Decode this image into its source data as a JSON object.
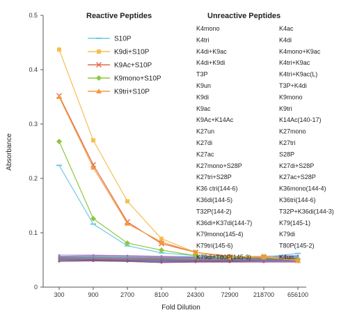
{
  "chart_data": {
    "type": "line",
    "title": "",
    "xlabel": "Fold Dilution",
    "ylabel": "Absorbance",
    "x": [
      "300",
      "900",
      "2700",
      "8100",
      "24300",
      "72900",
      "218700",
      "656100"
    ],
    "ylim": [
      0.0,
      0.5
    ],
    "yticks": [
      "0",
      "0.1",
      "0.2",
      "0.3",
      "0.4",
      "0.5"
    ],
    "grid": false,
    "legend_title": "Reactive Peptides",
    "legend_position": "top-left",
    "series": [
      {
        "name": "S10P",
        "color": "#6ecbe0",
        "marker": "dash",
        "values": [
          0.224,
          0.116,
          0.076,
          0.063,
          0.058,
          0.056,
          0.055,
          0.062
        ]
      },
      {
        "name": "K9di+S10P",
        "color": "#f7be4f",
        "marker": "square",
        "values": [
          0.437,
          0.27,
          0.158,
          0.089,
          0.064,
          0.056,
          0.057,
          0.049
        ]
      },
      {
        "name": "K9Ac+S10P",
        "color": "#e06a4a",
        "marker": "x",
        "values": [
          0.352,
          0.225,
          0.12,
          0.08,
          0.064,
          0.055,
          0.055,
          0.049
        ]
      },
      {
        "name": "K9mono+S10P",
        "color": "#8ec63f",
        "marker": "diamond",
        "values": [
          0.268,
          0.126,
          0.081,
          0.068,
          0.058,
          0.055,
          0.055,
          0.05
        ]
      },
      {
        "name": "K9tri+S10P",
        "color": "#f59a3a",
        "marker": "triangle",
        "values": [
          0.35,
          0.22,
          0.117,
          0.083,
          0.064,
          0.057,
          0.055,
          0.049
        ]
      }
    ],
    "background_series_values": [
      [
        0.059,
        0.059,
        0.058,
        0.057,
        0.056,
        0.056,
        0.057,
        0.058
      ],
      [
        0.057,
        0.058,
        0.057,
        0.056,
        0.055,
        0.055,
        0.056,
        0.057
      ],
      [
        0.056,
        0.057,
        0.056,
        0.055,
        0.055,
        0.055,
        0.055,
        0.056
      ],
      [
        0.055,
        0.056,
        0.055,
        0.055,
        0.054,
        0.054,
        0.055,
        0.055
      ],
      [
        0.055,
        0.055,
        0.054,
        0.054,
        0.054,
        0.053,
        0.054,
        0.054
      ],
      [
        0.054,
        0.055,
        0.054,
        0.053,
        0.053,
        0.053,
        0.053,
        0.054
      ],
      [
        0.054,
        0.054,
        0.053,
        0.053,
        0.052,
        0.052,
        0.053,
        0.053
      ],
      [
        0.053,
        0.054,
        0.053,
        0.052,
        0.052,
        0.052,
        0.052,
        0.052
      ],
      [
        0.053,
        0.053,
        0.052,
        0.052,
        0.051,
        0.051,
        0.052,
        0.052
      ],
      [
        0.052,
        0.053,
        0.052,
        0.051,
        0.051,
        0.051,
        0.051,
        0.051
      ],
      [
        0.052,
        0.052,
        0.051,
        0.051,
        0.05,
        0.05,
        0.051,
        0.051
      ],
      [
        0.051,
        0.052,
        0.051,
        0.05,
        0.05,
        0.05,
        0.05,
        0.05
      ],
      [
        0.051,
        0.051,
        0.05,
        0.05,
        0.049,
        0.049,
        0.05,
        0.05
      ],
      [
        0.05,
        0.051,
        0.05,
        0.049,
        0.049,
        0.049,
        0.049,
        0.049
      ],
      [
        0.05,
        0.05,
        0.049,
        0.049,
        0.048,
        0.048,
        0.049,
        0.049
      ],
      [
        0.049,
        0.05,
        0.049,
        0.048,
        0.048,
        0.048,
        0.048,
        0.048
      ],
      [
        0.049,
        0.049,
        0.048,
        0.047,
        0.047,
        0.047,
        0.048,
        0.048
      ],
      [
        0.048,
        0.049,
        0.048,
        0.046,
        0.047,
        0.047,
        0.047,
        0.047
      ],
      [
        0.048,
        0.048,
        0.047,
        0.045,
        0.046,
        0.046,
        0.047,
        0.047
      ],
      [
        0.047,
        0.048,
        0.047,
        0.045,
        0.046,
        0.046,
        0.046,
        0.046
      ]
    ],
    "background_colors": [
      "#7a7ad8",
      "#d84fa0",
      "#4fa0d8",
      "#a0a0a0",
      "#8a5fc8",
      "#50b0a0",
      "#c86060",
      "#6080c0",
      "#909030",
      "#b070d0",
      "#3c8ca8",
      "#d08040",
      "#7070a0",
      "#a050a0",
      "#5090d0",
      "#606060",
      "#c050c0",
      "#4060a0",
      "#80a0c0",
      "#b04070"
    ],
    "unreactive_title": "Unreactive Peptides",
    "unreactive_col1": [
      "K4mono",
      "K4tri",
      "K4di+K9ac",
      "K4di+K9di",
      "T3P",
      "K9un",
      "K9di",
      "K9ac",
      "K9Ac+K14Ac",
      "K27un",
      "K27di",
      "K27ac",
      "K27mono+S28P",
      "K27tri+S28P",
      "K36 ctri(144-6)",
      "K36di(144-5)",
      "T32P(144-2)",
      "K36di+K37di(144-7)",
      "K79mono(145-4)",
      "K79tri(145-6)",
      "K79di+T80P(145-3)"
    ],
    "unreactive_col2": [
      "K4ac",
      "K4di",
      "K4mono+K9ac",
      "K4tri+K9ac",
      "K4tri+K9ac(L)",
      "T3P+K4di",
      "K9mono",
      "K9tri",
      "K14Ac(140-17)",
      "K27mono",
      "K27tri",
      "S28P",
      "K27di+S28P",
      "K27ac+S28P",
      "K36mono(144-4)",
      "K36tri(144-6)",
      "T32P+K36di(144-3)",
      "K79(145-1)",
      "K79di",
      "T80P(145-2)",
      "K4un"
    ]
  }
}
